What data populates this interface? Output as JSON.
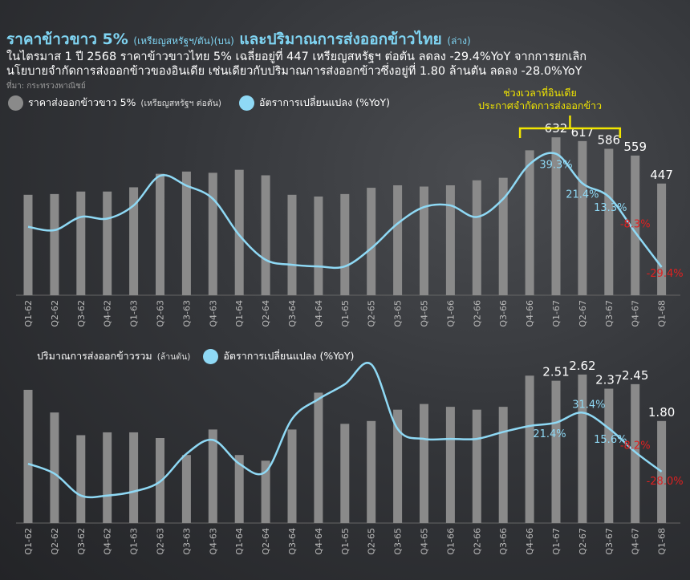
{
  "header": {
    "title_main": "ราคาข้าวขาว 5%",
    "title_unit1": "(เหรียญสหรัฐฯ/ตัน)",
    "title_pos1": "(บน)",
    "title_main2": "และปริมาณการส่งออกข้าวไทย",
    "title_pos2": "(ล่าง)",
    "desc_line1": "ในไตรมาส 1 ปี 2568 ราคาข้าวขาวไทย 5% เฉลี่ยอยู่ที่ 447 เหรียญสหรัฐฯ ต่อตัน ลดลง -29.4%YoY จากการยกเลิก",
    "desc_line2": "นโยบายจำกัดการส่งออกข้าวของอินเดีย เช่นเดียวกับปริมาณการส่งออกข้าวซึ่งอยู่ที่ 1.80 ล้านตัน ลดลง -28.0%YoY",
    "source": "ที่มา: กระทรวงพาณิชย์"
  },
  "colors": {
    "bar": "#8a8a8a",
    "line": "#8fd9f5",
    "negative": "#e02020",
    "bracket": "#f2e600",
    "accent": "#7fd4f2"
  },
  "chart_data": [
    {
      "type": "bar",
      "legend_bar": "ราคาส่งออกข้าวขาว 5%",
      "legend_bar_unit": "(เหรียญสหรัฐฯ ต่อตัน)",
      "legend_line": "อัตราการเปลี่ยนแปลง (%YoY)",
      "annotation": "ช่วงเวลาที่อินเดีย ประกาศจำกัดการส่งออกข้าว",
      "annotation_line1": "ช่วงเวลาที่อินเดีย",
      "annotation_line2": "ประกาศจำกัดการส่งออกข้าว",
      "categories": [
        "Q1-62",
        "Q2-62",
        "Q3-62",
        "Q4-62",
        "Q1-63",
        "Q2-63",
        "Q3-63",
        "Q4-63",
        "Q1-64",
        "Q2-64",
        "Q3-64",
        "Q4-64",
        "Q1-65",
        "Q2-65",
        "Q3-65",
        "Q4-65",
        "Q1-66",
        "Q2-66",
        "Q3-66",
        "Q4-66",
        "Q1-67",
        "Q2-67",
        "Q3-67",
        "Q4-67",
        "Q1-68"
      ],
      "bar_values": [
        402,
        405,
        415,
        415,
        432,
        486,
        495,
        490,
        502,
        480,
        402,
        395,
        405,
        430,
        440,
        435,
        440,
        460,
        470,
        580,
        632,
        617,
        586,
        559,
        447
      ],
      "yoy_values": [
        -5,
        -7,
        1,
        0,
        8,
        26,
        20,
        12,
        -10,
        -25,
        -28,
        -29,
        -29,
        -18,
        -3,
        7,
        8,
        1,
        12,
        33,
        39.3,
        21.4,
        13.3,
        -8.3,
        -29.4
      ],
      "bar_labels": [
        {
          "index": 20,
          "text": "632"
        },
        {
          "index": 21,
          "text": "617"
        },
        {
          "index": 22,
          "text": "586"
        },
        {
          "index": 23,
          "text": "559"
        },
        {
          "index": 24,
          "text": "447"
        }
      ],
      "yoy_labels": [
        {
          "index": 20,
          "text": "39.3%",
          "color": "#8fd9f5"
        },
        {
          "index": 21,
          "text": "21.4%",
          "color": "#8fd9f5"
        },
        {
          "index": 22,
          "text": "13.3%",
          "color": "#8fd9f5"
        },
        {
          "index": 23,
          "text": "-8.3%",
          "color": "#e02020"
        },
        {
          "index": 24,
          "text": "-29.4%",
          "color": "#e02020"
        }
      ],
      "bar_ylim": [
        0,
        700
      ],
      "yoy_ylim": [
        -45,
        45
      ],
      "bracket_range": [
        19,
        22
      ]
    },
    {
      "type": "bar",
      "legend_bar": "ปริมาณการส่งออกข้าวรวม",
      "legend_bar_unit": "(ล้านตัน)",
      "legend_line": "อัตราการเปลี่ยนแปลง (%YoY)",
      "categories": [
        "Q1-62",
        "Q2-62",
        "Q3-62",
        "Q4-62",
        "Q1-63",
        "Q2-63",
        "Q3-63",
        "Q4-63",
        "Q1-64",
        "Q2-64",
        "Q3-64",
        "Q4-64",
        "Q1-65",
        "Q2-65",
        "Q3-65",
        "Q4-65",
        "Q1-66",
        "Q2-66",
        "Q3-66",
        "Q4-66",
        "Q1-67",
        "Q2-67",
        "Q3-67",
        "Q4-67",
        "Q1-68"
      ],
      "bar_values": [
        2.35,
        1.95,
        1.55,
        1.6,
        1.6,
        1.5,
        1.2,
        1.65,
        1.2,
        1.1,
        1.65,
        2.3,
        1.75,
        1.8,
        2.0,
        2.1,
        2.05,
        2.0,
        2.05,
        2.6,
        2.51,
        2.62,
        2.37,
        2.45,
        1.8
      ],
      "yoy_values": [
        -20,
        -30,
        -52,
        -52,
        -48,
        -38,
        -10,
        4,
        -20,
        -28,
        25,
        45,
        60,
        80,
        15,
        5,
        5,
        5,
        12,
        18,
        21.4,
        31.4,
        15.6,
        -8.2,
        -28.0
      ],
      "bar_labels": [
        {
          "index": 20,
          "text": "2.51"
        },
        {
          "index": 21,
          "text": "2.62"
        },
        {
          "index": 22,
          "text": "2.37"
        },
        {
          "index": 23,
          "text": "2.45"
        },
        {
          "index": 24,
          "text": "1.80"
        }
      ],
      "yoy_labels": [
        {
          "index": 20,
          "text": "21.4%",
          "color": "#8fd9f5"
        },
        {
          "index": 21,
          "text": "31.4%",
          "color": "#8fd9f5"
        },
        {
          "index": 22,
          "text": "15.6%",
          "color": "#8fd9f5"
        },
        {
          "index": 23,
          "text": "-8.2%",
          "color": "#e02020"
        },
        {
          "index": 24,
          "text": "-28.0%",
          "color": "#e02020"
        }
      ],
      "bar_ylim": [
        0,
        3.0
      ],
      "yoy_ylim": [
        -70,
        85
      ]
    }
  ]
}
